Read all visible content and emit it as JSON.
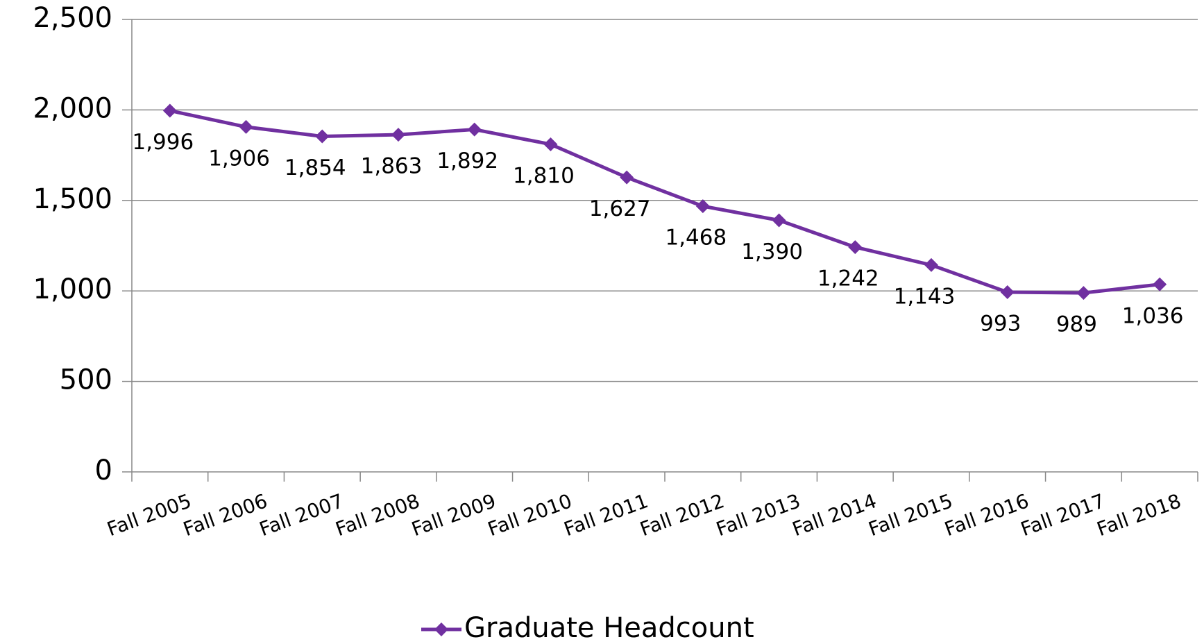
{
  "chart_data": {
    "type": "line",
    "categories": [
      "Fall 2005",
      "Fall 2006",
      "Fall 2007",
      "Fall 2008",
      "Fall 2009",
      "Fall 2010",
      "Fall 2011",
      "Fall 2012",
      "Fall 2013",
      "Fall 2014",
      "Fall 2015",
      "Fall 2016",
      "Fall 2017",
      "Fall 2018"
    ],
    "series": [
      {
        "name": "Graduate Headcount",
        "color": "#7030a0",
        "values": [
          1996,
          1906,
          1854,
          1863,
          1892,
          1810,
          1627,
          1468,
          1390,
          1242,
          1143,
          993,
          989,
          1036
        ],
        "value_labels": [
          "1,996",
          "1,906",
          "1,854",
          "1,863",
          "1,892",
          "1,810",
          "1,627",
          "1,468",
          "1,390",
          "1,242",
          "1,143",
          "993",
          "989",
          "1,036"
        ]
      }
    ],
    "ylim": [
      0,
      2500
    ],
    "yticks": [
      0,
      500,
      {
        "value": 1000,
        "label": "1,000"
      },
      {
        "value": 1500,
        "label": "1,500"
      },
      {
        "value": 2000,
        "label": "2,000"
      },
      {
        "value": 2500,
        "label": "2,500"
      }
    ],
    "grid": true,
    "legend": "bottom"
  }
}
